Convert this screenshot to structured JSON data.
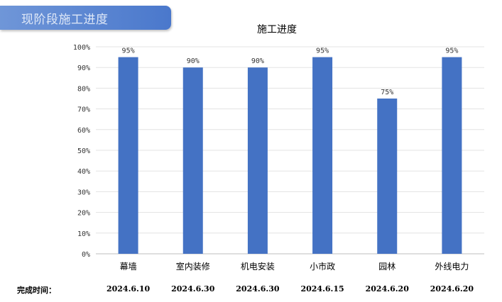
{
  "header": {
    "title": "现阶段施工进度"
  },
  "chart_data": {
    "type": "bar",
    "title": "施工进度",
    "categories": [
      "幕墙",
      "室内装修",
      "机电安装",
      "小市政",
      "园林",
      "外线电力"
    ],
    "values": [
      95,
      90,
      90,
      95,
      75,
      95
    ],
    "value_labels": [
      "95%",
      "90%",
      "90%",
      "95%",
      "75%",
      "95%"
    ],
    "ylim": [
      0,
      100
    ],
    "yticks": [
      "0%",
      "10%",
      "20%",
      "30%",
      "40%",
      "50%",
      "60%",
      "70%",
      "80%",
      "90%",
      "100%"
    ],
    "grid": true,
    "bar_color": "#4472c4"
  },
  "footer": {
    "label": "完成时间：",
    "dates": [
      "2024.6.10",
      "2024.6.30",
      "2024.6.30",
      "2024.6.15",
      "2024.6.20",
      "2024.6.20"
    ]
  }
}
